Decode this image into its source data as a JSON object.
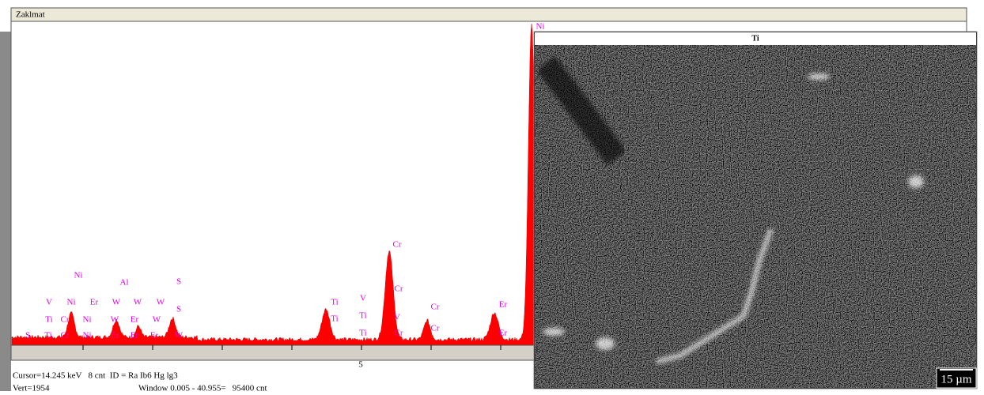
{
  "window": {
    "title": "Zaklmat"
  },
  "spectrum": {
    "x_tick": "5",
    "peak_labels": [
      "Ni",
      "V",
      "Ni",
      "Er",
      "W",
      "W",
      "W",
      "Ti",
      "Cr",
      "Ni",
      "W",
      "Er",
      "W",
      "S",
      "Ti",
      "Cr",
      "Ni",
      "Er",
      "Er",
      "Er",
      "W",
      "Al",
      "S",
      "S",
      "Ti",
      "Ti",
      "V",
      "Ti",
      "Ti",
      "Cr",
      "Cr",
      "V",
      "Cr",
      "Cr",
      "Cr",
      "Er",
      "Er",
      "Ni"
    ]
  },
  "status": {
    "cursor": "Cursor=14.245 keV   8 cnt  ID = Ra Ib6 Hg lg3",
    "vert": "Vert=1954",
    "window": "Window 0.005 - 40.955=   95400 cnt"
  },
  "map": {
    "element": "Ti",
    "scale_bar": "15 µm"
  }
}
